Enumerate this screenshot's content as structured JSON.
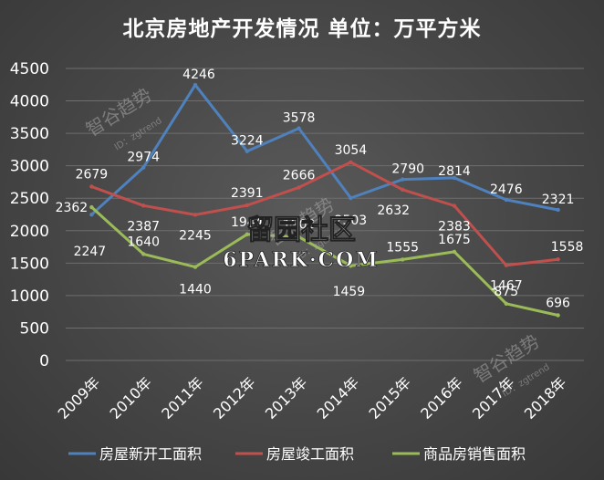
{
  "chart_data": {
    "type": "line",
    "title": "北京房地产开发情况 单位：万平方米",
    "categories": [
      "2009年",
      "2010年",
      "2011年",
      "2012年",
      "2013年",
      "2014年",
      "2015年",
      "2016年",
      "2017年",
      "2018年"
    ],
    "ylim": [
      0,
      4500
    ],
    "yticks": [
      0,
      500,
      1000,
      1500,
      2000,
      2500,
      3000,
      3500,
      4000,
      4500
    ],
    "grid": true,
    "legend_position": "bottom",
    "series": [
      {
        "name": "房屋新开工面积",
        "color": "#4f81bd",
        "values": [
          2247,
          2974,
          4246,
          3224,
          3578,
          2503,
          2790,
          2814,
          2476,
          2321
        ]
      },
      {
        "name": "房屋竣工面积",
        "color": "#c0504d",
        "values": [
          2679,
          2387,
          2245,
          2391,
          2666,
          3054,
          2632,
          2383,
          1467,
          1558
        ]
      },
      {
        "name": "商品房销售面积",
        "color": "#9bbb59",
        "values": [
          2362,
          1640,
          1440,
          1944,
          1903,
          1459,
          1555,
          1675,
          875,
          696
        ]
      }
    ]
  },
  "watermarks": {
    "brand_cn": "智谷趋势",
    "brand_id": "ID：zgtrend",
    "site_logo": "留园社区",
    "site_url": "6PARK·COM"
  }
}
